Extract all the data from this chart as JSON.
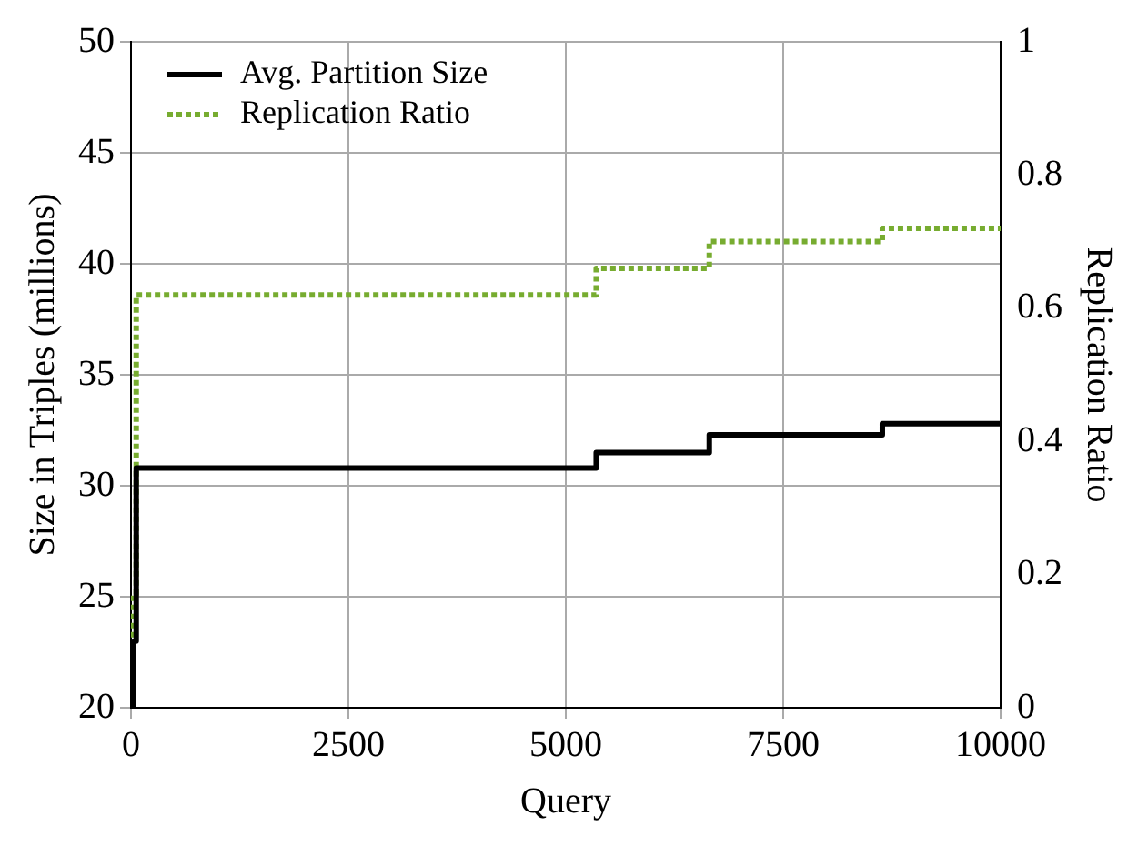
{
  "chart_data": {
    "type": "step",
    "xlabel": "Query",
    "ylabel": "Size in Triples (millions)",
    "y2label": "Replication Ratio",
    "xlim": [
      0,
      10000
    ],
    "xticks": [
      0,
      2500,
      5000,
      7500,
      10000
    ],
    "ylim": [
      20,
      50
    ],
    "yticks": [
      20,
      25,
      30,
      35,
      40,
      45,
      50
    ],
    "y2lim": [
      0,
      1
    ],
    "y2ticks": [
      0,
      0.2,
      0.4,
      0.6,
      0.8,
      1
    ],
    "grid": true,
    "legend": "top left",
    "marker": "none",
    "series": [
      {
        "name": "Avg. Partition Size",
        "color": "#000000",
        "line_style": "solid",
        "x": [
          0,
          30,
          60,
          5350,
          6650,
          8640,
          10000
        ],
        "values": [
          20,
          23,
          30.8,
          31.5,
          32.3,
          32.8,
          32.8
        ]
      },
      {
        "name": "Replication Ratio",
        "color": "#77ac30",
        "line_style": "dotted",
        "axis": "y2",
        "x": [
          0,
          30,
          60,
          5350,
          6650,
          8640,
          10000
        ],
        "values": [
          0,
          0.17,
          0.62,
          0.66,
          0.7,
          0.72,
          0.72
        ]
      }
    ]
  }
}
